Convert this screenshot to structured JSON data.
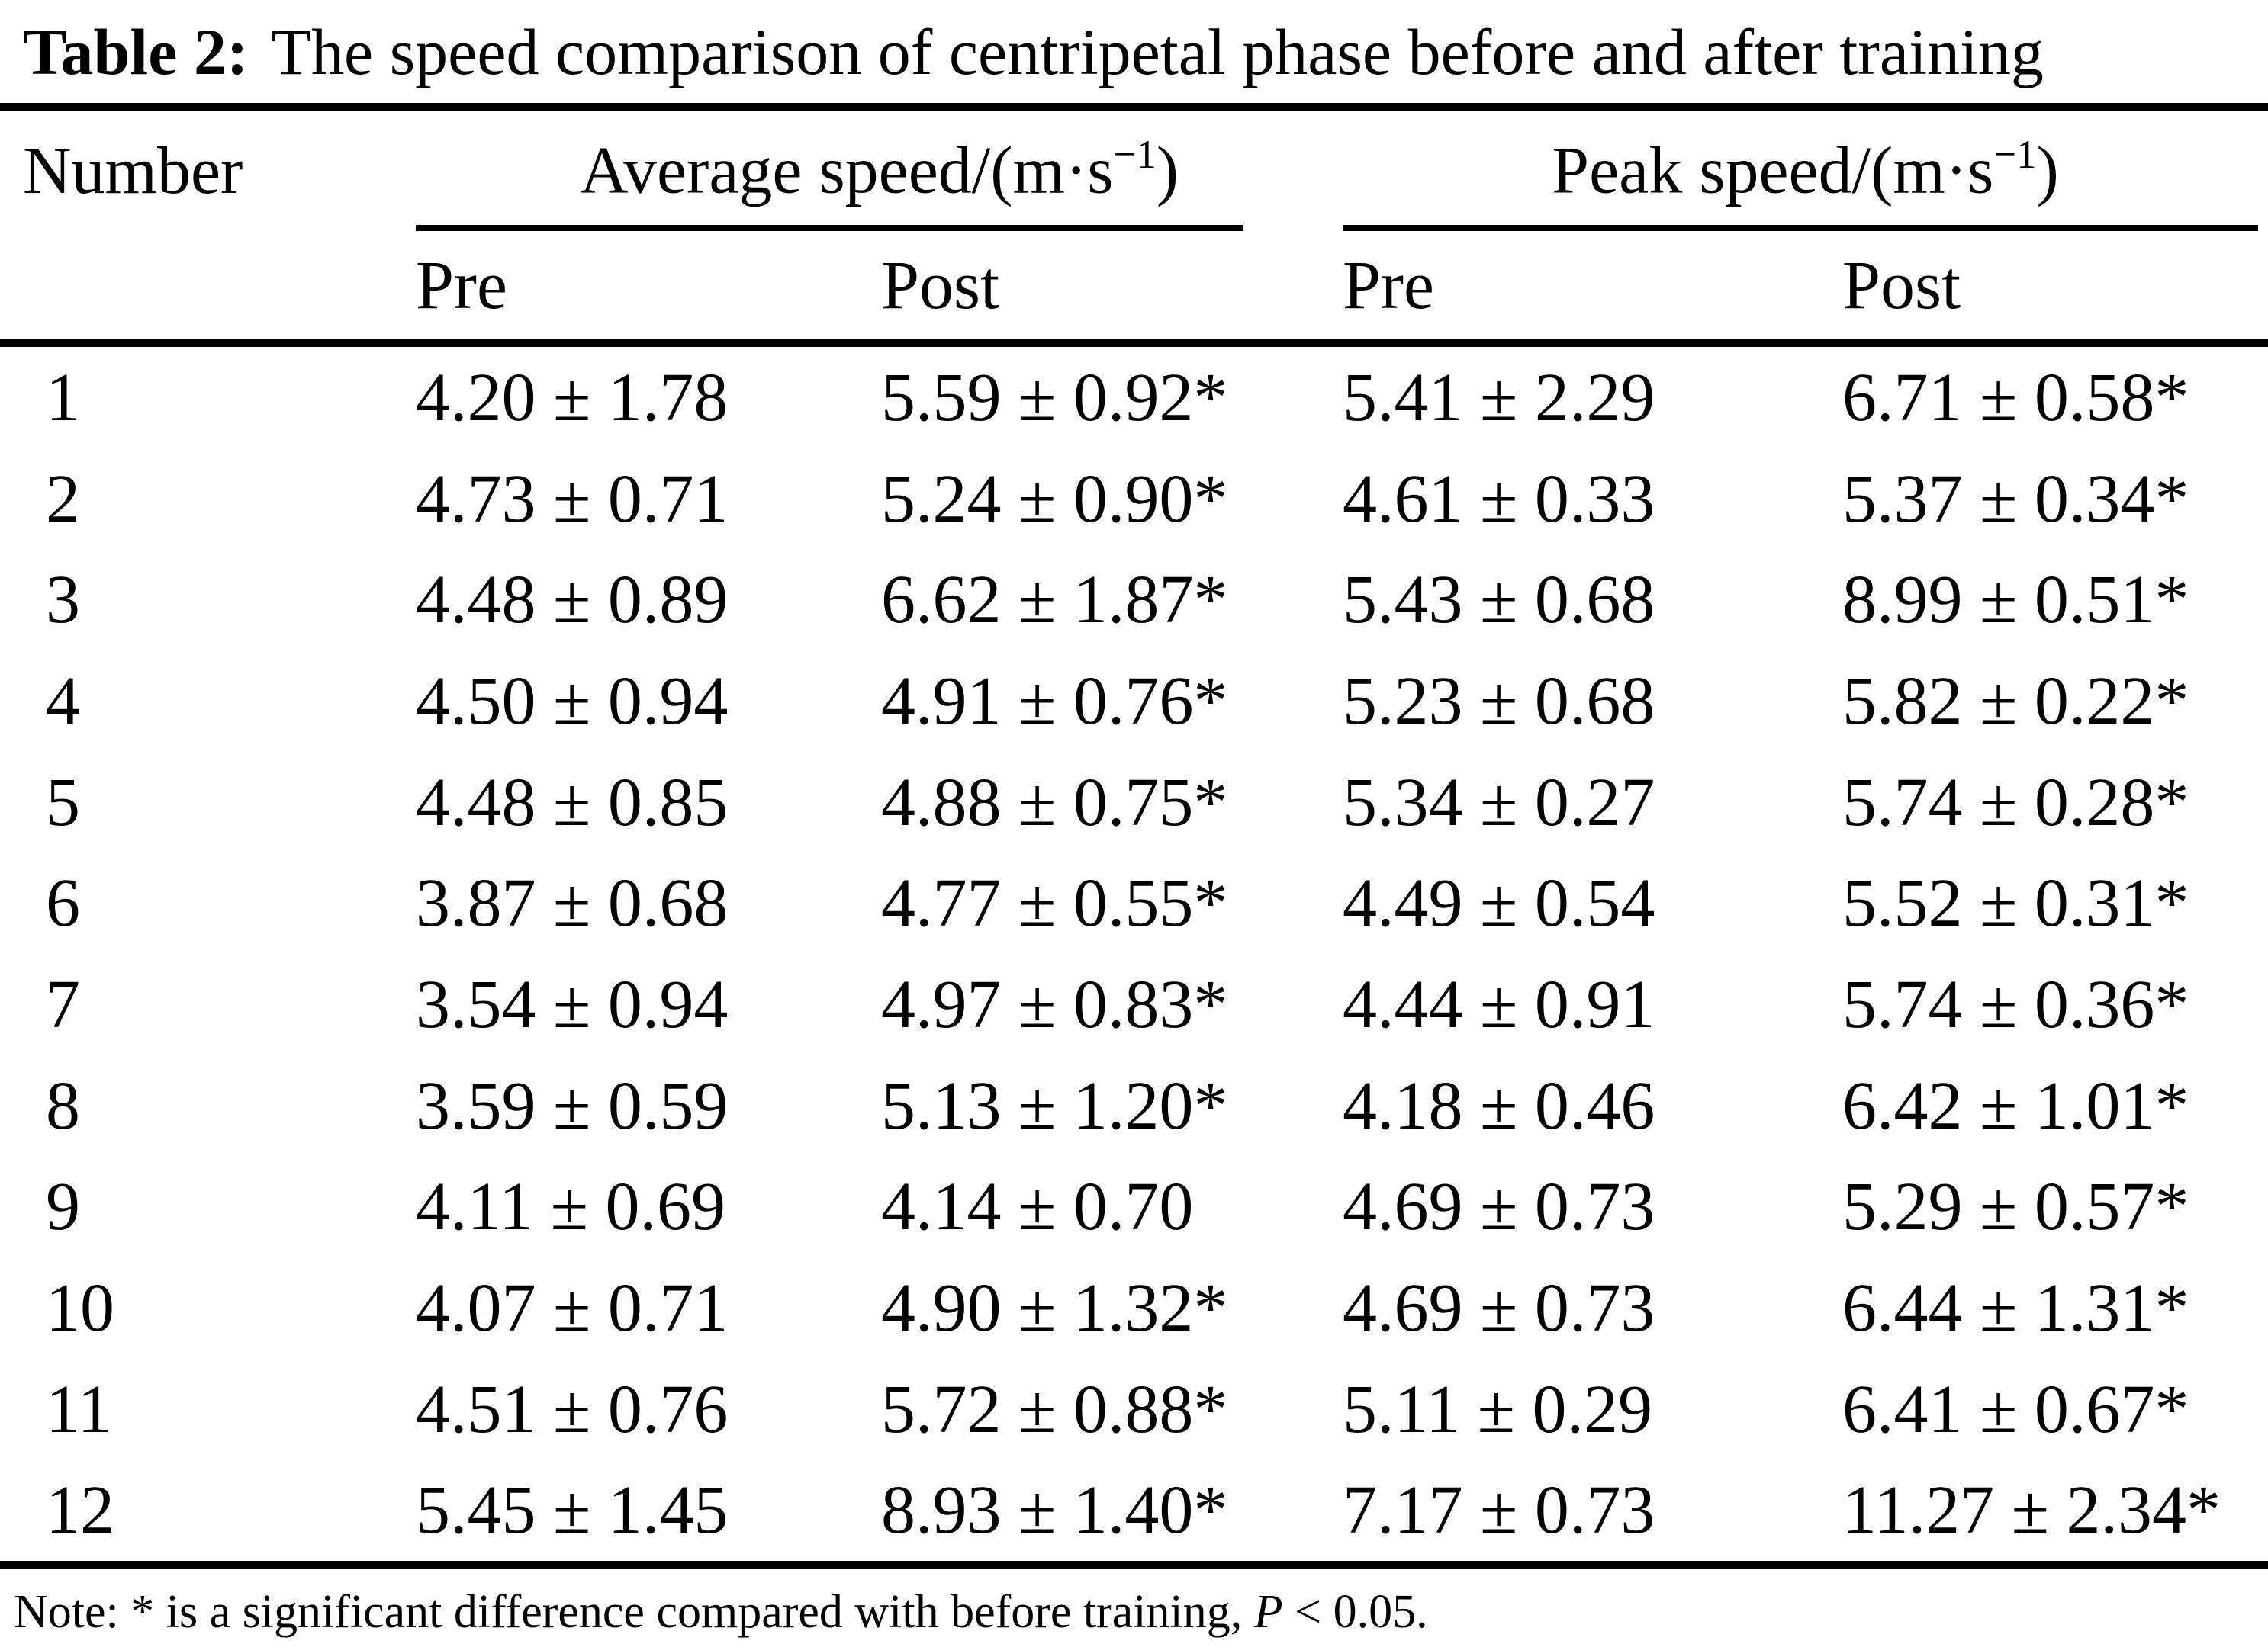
{
  "page": {
    "background": "#ffffff",
    "text_color": "#000000"
  },
  "title": {
    "label": "Table 2:",
    "text": "The speed comparison of centripetal phase before and after training"
  },
  "table": {
    "number_header": "Number",
    "group_headers": [
      {
        "prefix": "Average speed/(m·s",
        "superscript": "−1",
        "suffix": ")"
      },
      {
        "prefix": "Peak speed/(m·s",
        "superscript": "−1",
        "suffix": ")"
      }
    ],
    "sub_headers": [
      "Pre",
      "Post",
      "Pre",
      "Post"
    ],
    "rows": [
      {
        "number": "1",
        "avg_pre": "4.20 ± 1.78",
        "avg_post": "5.59 ± 0.92*",
        "peak_pre": "5.41 ± 2.29",
        "peak_post": "6.71 ± 0.58*"
      },
      {
        "number": "2",
        "avg_pre": "4.73 ± 0.71",
        "avg_post": "5.24 ± 0.90*",
        "peak_pre": "4.61 ± 0.33",
        "peak_post": "5.37 ± 0.34*"
      },
      {
        "number": "3",
        "avg_pre": "4.48 ± 0.89",
        "avg_post": "6.62 ± 1.87*",
        "peak_pre": "5.43 ± 0.68",
        "peak_post": "8.99 ± 0.51*"
      },
      {
        "number": "4",
        "avg_pre": "4.50 ± 0.94",
        "avg_post": "4.91 ± 0.76*",
        "peak_pre": "5.23 ± 0.68",
        "peak_post": "5.82 ± 0.22*"
      },
      {
        "number": "5",
        "avg_pre": "4.48 ± 0.85",
        "avg_post": "4.88 ± 0.75*",
        "peak_pre": "5.34 ± 0.27",
        "peak_post": "5.74 ± 0.28*"
      },
      {
        "number": "6",
        "avg_pre": "3.87 ± 0.68",
        "avg_post": "4.77 ± 0.55*",
        "peak_pre": "4.49 ± 0.54",
        "peak_post": "5.52 ± 0.31*"
      },
      {
        "number": "7",
        "avg_pre": "3.54 ± 0.94",
        "avg_post": "4.97 ± 0.83*",
        "peak_pre": "4.44 ± 0.91",
        "peak_post": "5.74 ± 0.36*"
      },
      {
        "number": "8",
        "avg_pre": "3.59 ± 0.59",
        "avg_post": "5.13 ± 1.20*",
        "peak_pre": "4.18 ± 0.46",
        "peak_post": "6.42 ± 1.01*"
      },
      {
        "number": "9",
        "avg_pre": "4.11 ± 0.69",
        "avg_post": "4.14 ± 0.70",
        "peak_pre": "4.69 ± 0.73",
        "peak_post": "5.29 ± 0.57*"
      },
      {
        "number": "10",
        "avg_pre": "4.07 ± 0.71",
        "avg_post": "4.90 ± 1.32*",
        "peak_pre": "4.69 ± 0.73",
        "peak_post": "6.44 ± 1.31*"
      },
      {
        "number": "11",
        "avg_pre": "4.51 ± 0.76",
        "avg_post": "5.72 ± 0.88*",
        "peak_pre": "5.11 ± 0.29",
        "peak_post": "6.41 ± 0.67*"
      },
      {
        "number": "12",
        "avg_pre": "5.45 ± 1.45",
        "avg_post": "8.93 ± 1.40*",
        "peak_pre": "7.17 ± 0.73",
        "peak_post": "11.27 ± 2.34*"
      }
    ]
  },
  "note": {
    "prefix": "Note: * is a significant difference compared with before training, ",
    "p_symbol": "P",
    "suffix": " < 0.05."
  }
}
